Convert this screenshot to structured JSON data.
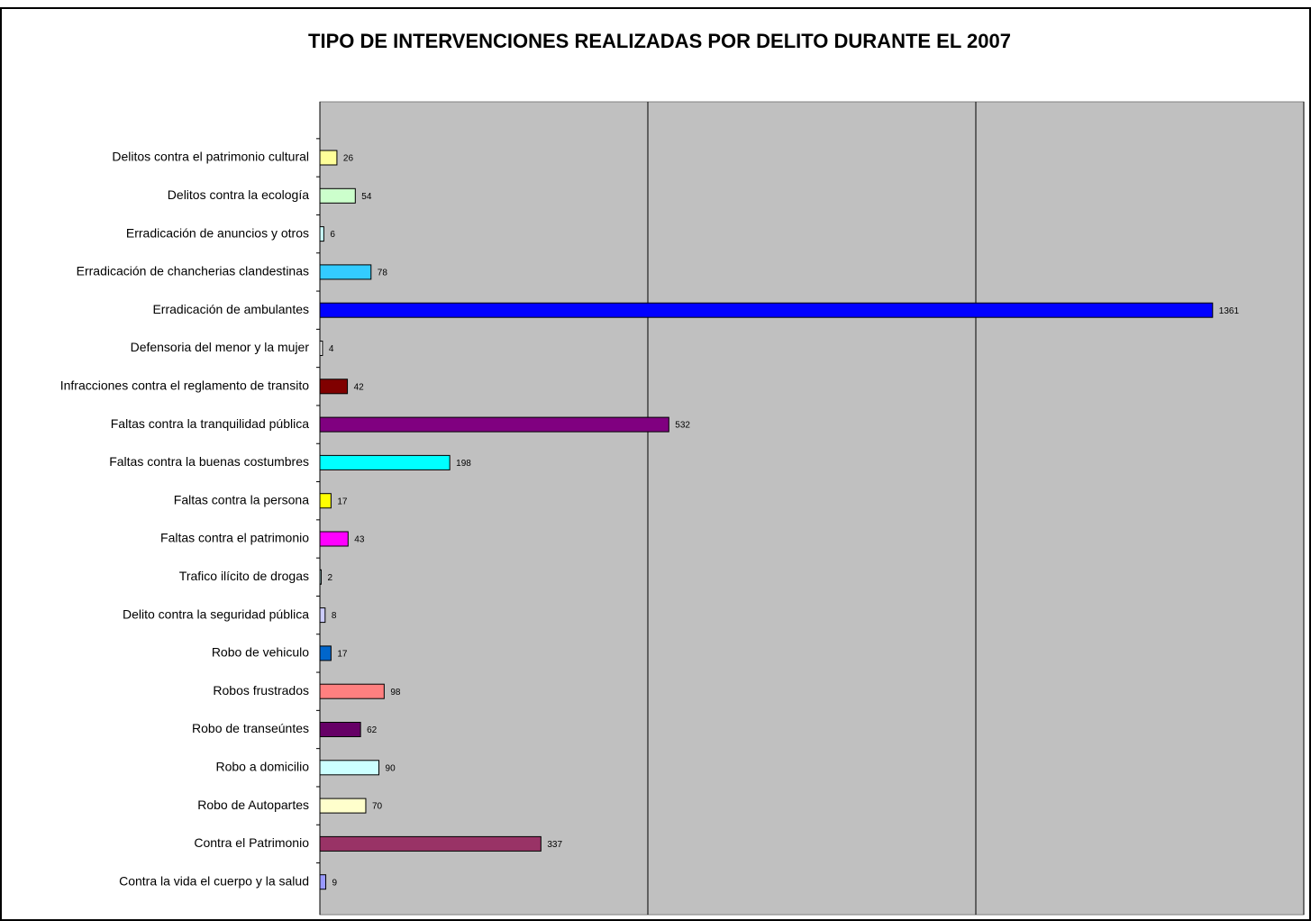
{
  "chart_data": {
    "type": "barh",
    "title": "TIPO DE INTERVENCIONES REALIZADAS POR DELITO DURANTE EL 2007",
    "categories": [
      "Delitos contra el patrimonio cultural",
      "Delitos contra la ecología",
      "Erradicación de anuncios y otros",
      "Erradicación de chancherias clandestinas",
      "Erradicación de ambulantes",
      "Defensoria del menor y la mujer",
      "Infracciones contra el reglamento de transito",
      "Faltas contra la tranquilidad pública",
      "Faltas contra la buenas costumbres",
      "Faltas contra la persona",
      "Faltas contra el patrimonio",
      "Trafico ilícito de drogas",
      "Delito contra la seguridad pública",
      "Robo de vehiculo",
      "Robos frustrados",
      "Robo de transeúntes",
      "Robo a domicilio",
      "Robo de Autopartes",
      "Contra el Patrimonio",
      "Contra la vida el cuerpo y la salud"
    ],
    "values": [
      26,
      54,
      6,
      78,
      1361,
      4,
      42,
      532,
      198,
      17,
      43,
      2,
      8,
      17,
      98,
      62,
      90,
      70,
      337,
      9
    ],
    "colors": [
      "#ffff99",
      "#ccffcc",
      "#ccffff",
      "#33ccff",
      "#0000ff",
      "#ffffff",
      "#800000",
      "#800080",
      "#00ffff",
      "#ffff00",
      "#ff00ff",
      "#ccffff",
      "#ccccff",
      "#0066cc",
      "#ff8080",
      "#660066",
      "#ccffff",
      "#ffffcc",
      "#993366",
      "#9999ff"
    ],
    "xlim": [
      0,
      1500
    ],
    "xticks": [
      0,
      500,
      1000,
      1500
    ],
    "grid": true
  }
}
